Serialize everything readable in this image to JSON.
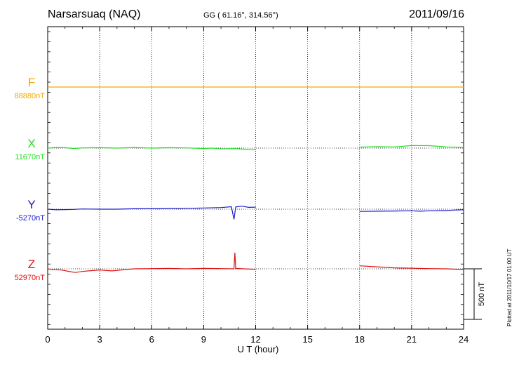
{
  "header": {
    "station": "Narsarsuaq (NAQ)",
    "coords": "GG ( 61.16°, 314.56°)",
    "date": "2011/09/16"
  },
  "footer": {
    "plotted": "Plotted at 2011/10/17 01:00 UT"
  },
  "chart_data": {
    "type": "line",
    "title": "Narsarsuaq (NAQ)",
    "xlabel": "U T (hour)",
    "xlim": [
      0,
      24
    ],
    "xticks": [
      0,
      3,
      6,
      9,
      12,
      15,
      18,
      21,
      24
    ],
    "xtick_labels": [
      "0",
      "3",
      "6",
      "9",
      "12",
      "15",
      "18",
      "21",
      "24"
    ],
    "grid": true,
    "scale_bar": {
      "label": "500 nT",
      "value_nT": 500
    },
    "series": [
      {
        "name": "F",
        "baseline_label": "88880nT",
        "color": "#f2a900",
        "points": [
          [
            0,
            0
          ],
          [
            6,
            0
          ],
          [
            12,
            0
          ],
          [
            18,
            0
          ],
          [
            24,
            0
          ]
        ]
      },
      {
        "name": "X",
        "baseline_label": "11670nT",
        "color": "#22dd22",
        "segments": [
          [
            [
              0,
              0
            ],
            [
              0.5,
              6
            ],
            [
              1,
              4
            ],
            [
              1.5,
              -4
            ],
            [
              2,
              2
            ],
            [
              3,
              4
            ],
            [
              4,
              0
            ],
            [
              5,
              6
            ],
            [
              6,
              0
            ],
            [
              7,
              4
            ],
            [
              8,
              2
            ],
            [
              9,
              -4
            ],
            [
              9.5,
              0
            ],
            [
              10,
              -8
            ],
            [
              10.8,
              -4
            ],
            [
              11.2,
              -10
            ],
            [
              12,
              -16
            ]
          ],
          [
            [
              18,
              10
            ],
            [
              19,
              14
            ],
            [
              20,
              12
            ],
            [
              20.5,
              18
            ],
            [
              21,
              26
            ],
            [
              22,
              24
            ],
            [
              23,
              12
            ],
            [
              24,
              6
            ]
          ]
        ]
      },
      {
        "name": "Y",
        "baseline_label": "-5270nT",
        "color": "#1a1acc",
        "segments": [
          [
            [
              0,
              0
            ],
            [
              0.5,
              -6
            ],
            [
              1,
              -4
            ],
            [
              1.5,
              -2
            ],
            [
              2,
              2
            ],
            [
              3,
              0
            ],
            [
              4,
              0
            ],
            [
              5,
              4
            ],
            [
              6,
              4
            ],
            [
              7,
              6
            ],
            [
              8,
              8
            ],
            [
              9,
              12
            ],
            [
              10,
              16
            ],
            [
              10.6,
              24
            ],
            [
              10.75,
              -100
            ],
            [
              10.85,
              22
            ],
            [
              11.2,
              30
            ],
            [
              11.6,
              18
            ],
            [
              12,
              20
            ]
          ],
          [
            [
              18,
              -22
            ],
            [
              19,
              -20
            ],
            [
              20,
              -18
            ],
            [
              21,
              -16
            ],
            [
              21.5,
              -20
            ],
            [
              22,
              -16
            ],
            [
              23,
              -14
            ],
            [
              23.5,
              -8
            ],
            [
              24,
              -6
            ]
          ]
        ]
      },
      {
        "name": "Z",
        "baseline_label": "52970nT",
        "color": "#dd1111",
        "segments": [
          [
            [
              0,
              0
            ],
            [
              0.3,
              -8
            ],
            [
              0.8,
              -12
            ],
            [
              1.3,
              -28
            ],
            [
              1.6,
              -36
            ],
            [
              2,
              -26
            ],
            [
              2.5,
              -18
            ],
            [
              3,
              -12
            ],
            [
              3.7,
              -20
            ],
            [
              4,
              -16
            ],
            [
              4.5,
              -6
            ],
            [
              5,
              0
            ],
            [
              6,
              2
            ],
            [
              7,
              4
            ],
            [
              8,
              0
            ],
            [
              9,
              4
            ],
            [
              10,
              2
            ],
            [
              10.75,
              0
            ],
            [
              10.8,
              160
            ],
            [
              10.85,
              4
            ],
            [
              11.3,
              0
            ],
            [
              12,
              -4
            ]
          ],
          [
            [
              18,
              30
            ],
            [
              19,
              20
            ],
            [
              20,
              10
            ],
            [
              21,
              6
            ],
            [
              22,
              2
            ],
            [
              23,
              0
            ],
            [
              24,
              -6
            ]
          ]
        ]
      }
    ]
  }
}
